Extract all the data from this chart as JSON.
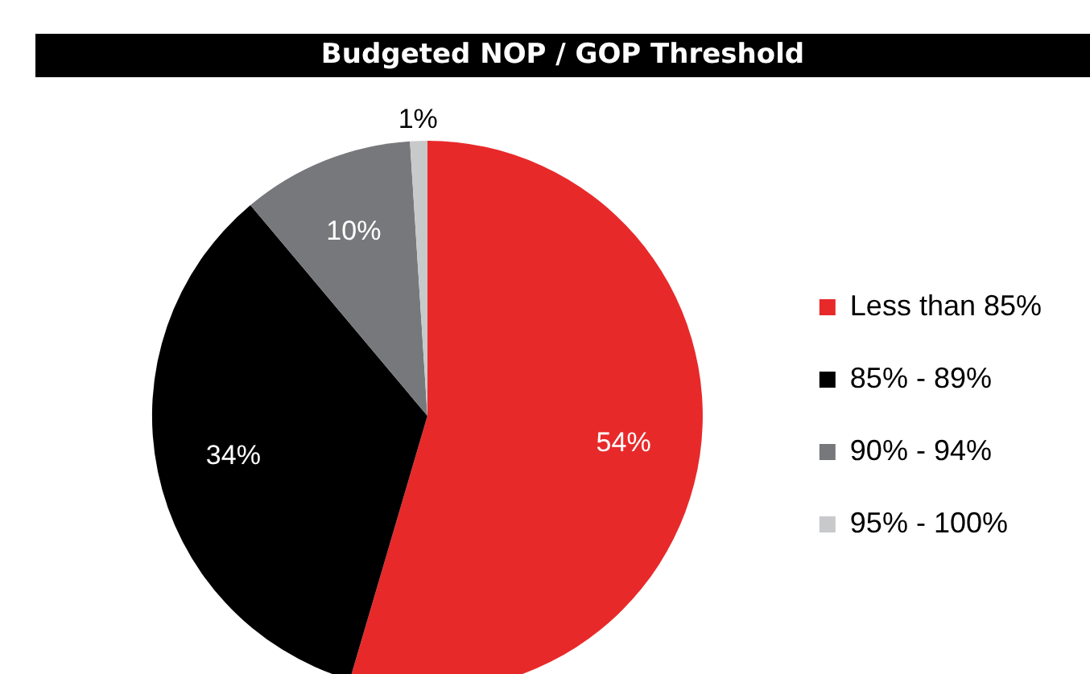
{
  "chart_data": {
    "type": "pie",
    "title": "Budgeted NOP / GOP Threshold",
    "categories": [
      "Less than 85%",
      "85% - 89%",
      "90% - 94%",
      "95% - 100%"
    ],
    "values": [
      54,
      34,
      10,
      1
    ],
    "colors": [
      "#e8292a",
      "#000000",
      "#77787b",
      "#c8c9cb"
    ],
    "value_labels": [
      "54%",
      "34%",
      "10%",
      "1%"
    ],
    "legend": "right"
  }
}
